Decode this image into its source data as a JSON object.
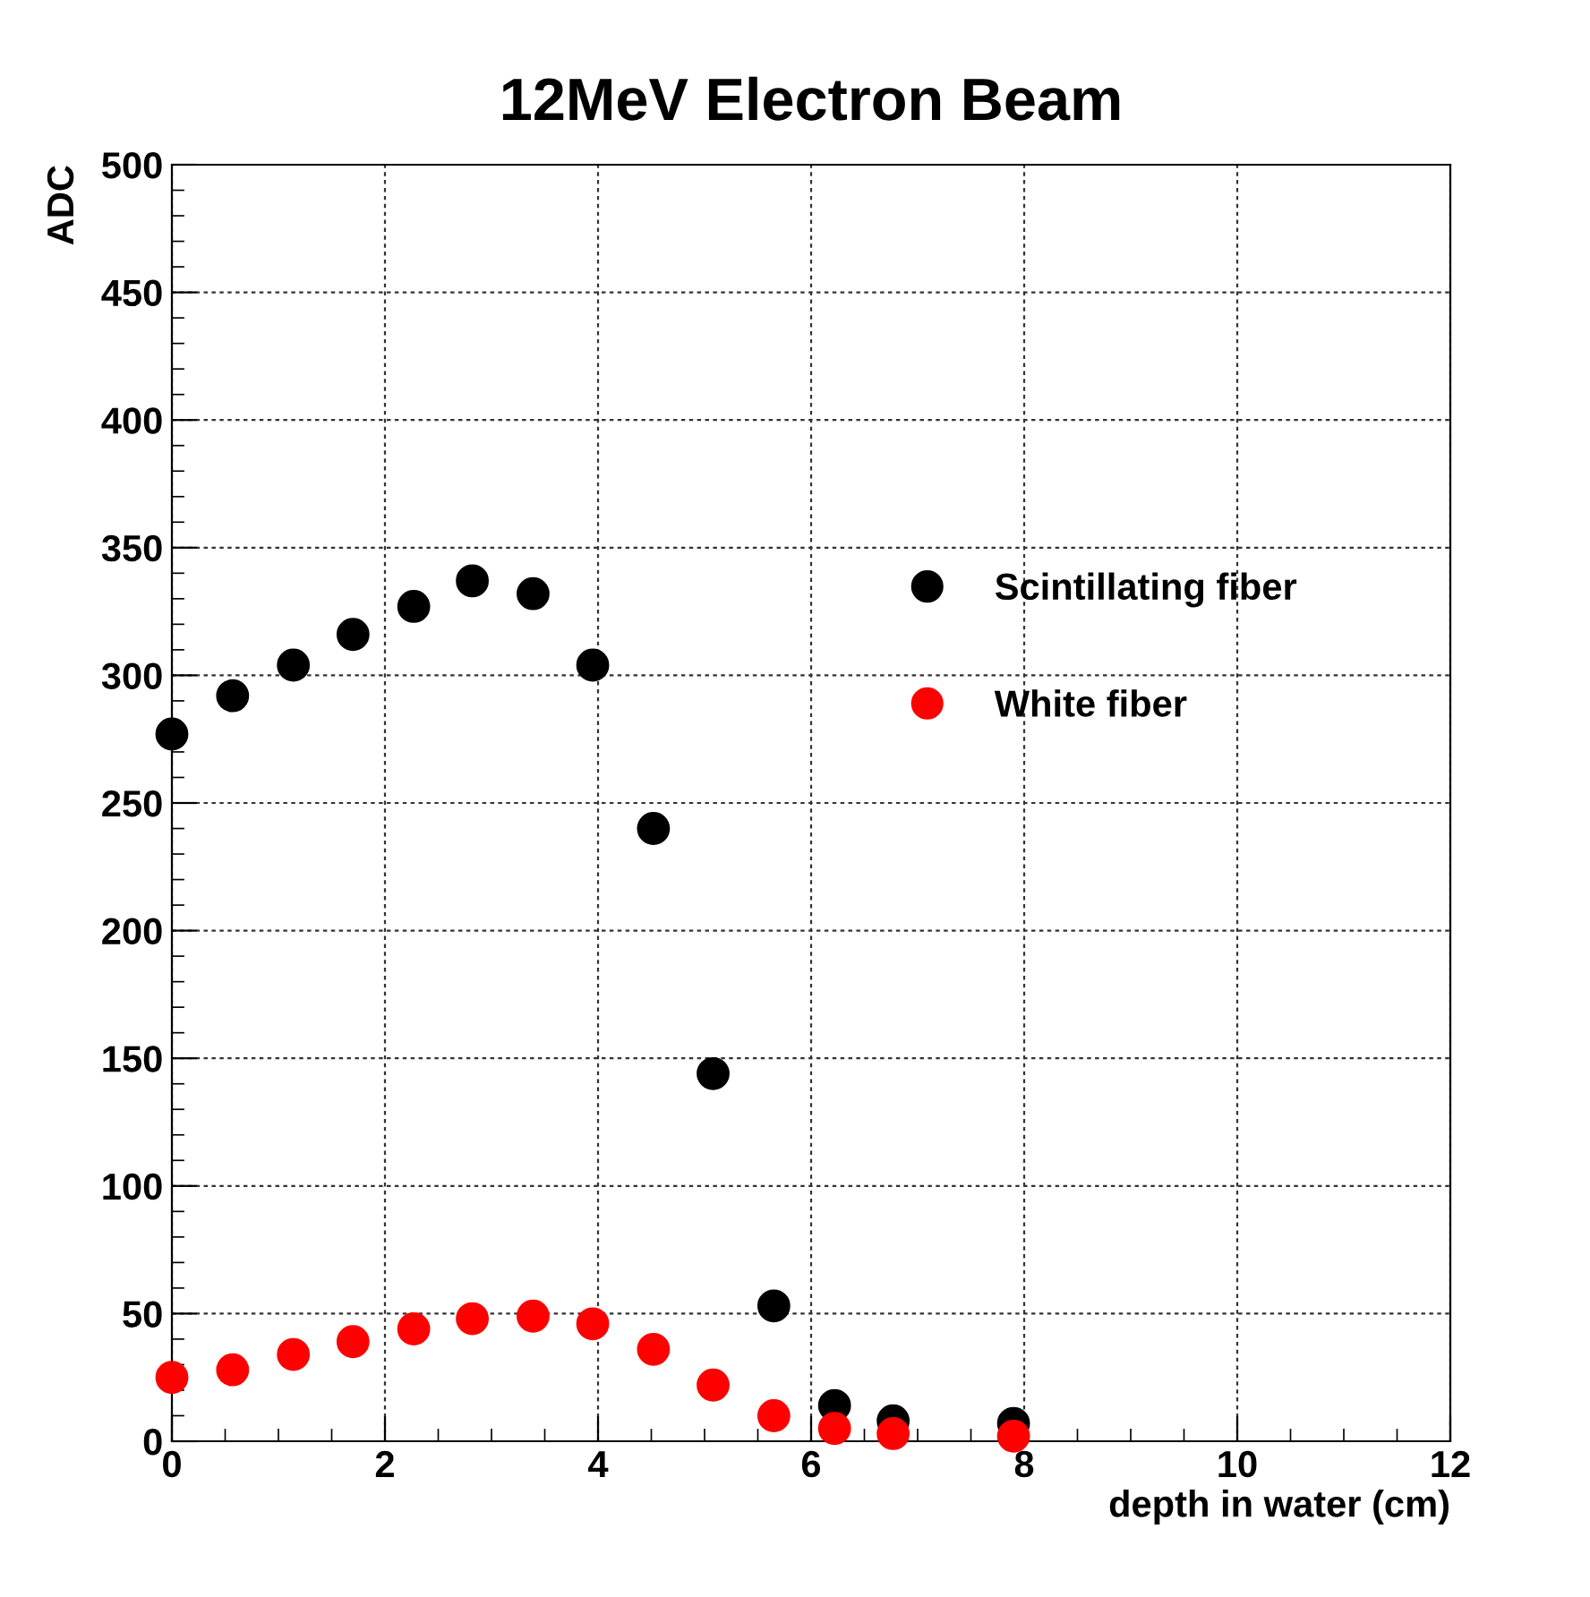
{
  "chart_data": {
    "type": "scatter",
    "title": "12MeV Electron Beam",
    "xlabel": "depth in water (cm)",
    "ylabel": "ADC",
    "xlim": [
      0,
      12
    ],
    "xticks": [
      0,
      2,
      4,
      6,
      8,
      10,
      12
    ],
    "ylim": [
      0,
      500
    ],
    "yticks": [
      0,
      50,
      100,
      150,
      200,
      250,
      300,
      350,
      400,
      450,
      500
    ],
    "grid": true,
    "legend": "right",
    "marker": "circle",
    "series": [
      {
        "name": "Scintillating fiber",
        "color": "#000000",
        "x": [
          0,
          0.57,
          1.14,
          1.7,
          2.27,
          2.82,
          3.39,
          3.95,
          4.52,
          5.08,
          5.65,
          6.22,
          6.77,
          7.9
        ],
        "values": [
          277,
          292,
          304,
          316,
          327,
          337,
          332,
          304,
          240,
          144,
          53,
          14,
          8,
          7
        ]
      },
      {
        "name": "White fiber",
        "color": "#ff0000",
        "x": [
          0,
          0.57,
          1.14,
          1.7,
          2.27,
          2.82,
          3.39,
          3.95,
          4.52,
          5.08,
          5.65,
          6.22,
          6.77,
          7.9
        ],
        "values": [
          25,
          28,
          34,
          39,
          44,
          48,
          49,
          46,
          36,
          22,
          10,
          5,
          3,
          2
        ]
      }
    ]
  }
}
